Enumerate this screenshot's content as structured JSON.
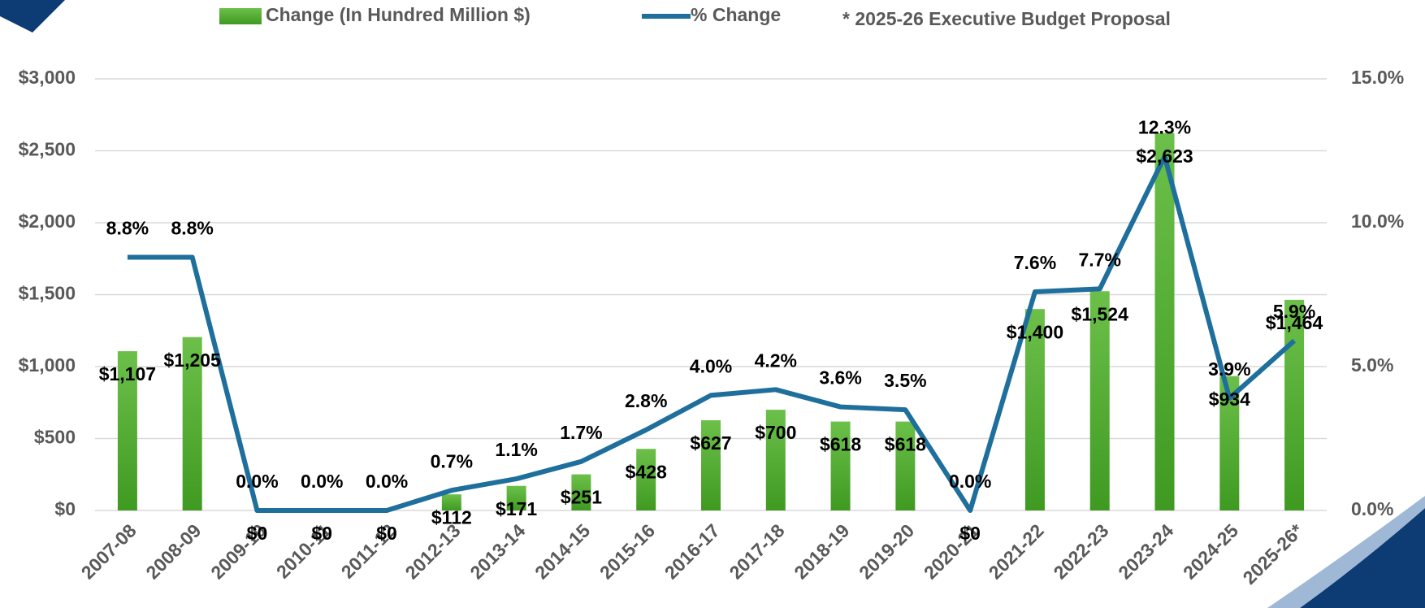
{
  "chart_data": {
    "type": "bar_line",
    "annotation": "* 2025-26 Executive Budget Proposal",
    "categories": [
      "2007-08",
      "2008-09",
      "2009-10",
      "2010-11",
      "2011-12",
      "2012-13",
      "2013-14",
      "2014-15",
      "2015-16",
      "2016-17",
      "2017-18",
      "2018-19",
      "2019-20",
      "2020-21",
      "2021-22",
      "2022-23",
      "2023-24",
      "2024-25",
      "2025-26*"
    ],
    "series": [
      {
        "name": "Change (In Hundred Million $)",
        "color": "#4ea72e",
        "type": "bar",
        "values": [
          1107,
          1205,
          0,
          0,
          0,
          112,
          171,
          251,
          428,
          627,
          700,
          618,
          618,
          0,
          1400,
          1524,
          2623,
          934,
          1464
        ],
        "value_labels": [
          "$1,107",
          "$1,205",
          "$0",
          "$0",
          "$0",
          "$112",
          "$171",
          "$251",
          "$428",
          "$627",
          "$700",
          "$618",
          "$618",
          "$0",
          "$1,400",
          "$1,524",
          "$2,623",
          "$934",
          "$1,464"
        ]
      },
      {
        "name": "% Change",
        "color": "#1f6f9c",
        "type": "line",
        "axis": "y2",
        "values": [
          8.8,
          8.8,
          0,
          0,
          0,
          0.7,
          1.1,
          1.7,
          2.8,
          4.0,
          4.2,
          3.6,
          3.5,
          0,
          7.6,
          7.7,
          12.3,
          3.9,
          5.9
        ],
        "value_labels": [
          "8.8%",
          "8.8%",
          "0.0%",
          "0.0%",
          "0.0%",
          "0.7%",
          "1.1%",
          "1.7%",
          "2.8%",
          "4.0%",
          "4.2%",
          "3.6%",
          "3.5%",
          "0.0%",
          "7.6%",
          "7.7%",
          "12.3%",
          "3.9%",
          "5.9%"
        ]
      }
    ],
    "ylim": [
      0,
      3000
    ],
    "yticks": [
      {
        "value": 0,
        "label": "$0"
      },
      {
        "value": 500,
        "label": "$500"
      },
      {
        "value": 1000,
        "label": "$1,000"
      },
      {
        "value": 1500,
        "label": "$1,500"
      },
      {
        "value": 2000,
        "label": "$2,000"
      },
      {
        "value": 2500,
        "label": "$2,500"
      },
      {
        "value": 3000,
        "label": "$3,000"
      }
    ],
    "y2lim": [
      0,
      15
    ],
    "y2ticks": [
      {
        "value": 0,
        "label": "0.0%"
      },
      {
        "value": 5,
        "label": "5.0%"
      },
      {
        "value": 10,
        "label": "10.0%"
      },
      {
        "value": 15,
        "label": "15.0%"
      }
    ],
    "grid": true,
    "legend": "top"
  }
}
